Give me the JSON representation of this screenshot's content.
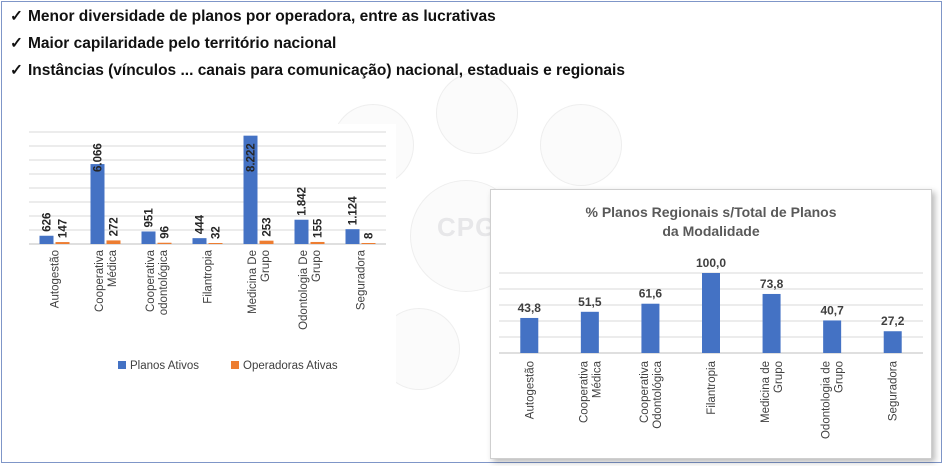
{
  "bullets": [
    {
      "icon": "checkmark-icon",
      "text": "Menor diversidade de planos por operadora, entre as lucrativas"
    },
    {
      "icon": "checkmark-icon",
      "text": "Maior capilaridade pelo território nacional"
    },
    {
      "icon": "checkmark-icon",
      "text": "Instâncias (vínculos ... canais para comunicação) nacional, estaduais e regionais"
    }
  ],
  "watermark": {
    "text": "CPGS"
  },
  "colors": {
    "blue": "#4472c4",
    "orange": "#ed7d31",
    "grid": "#d9d9d9",
    "text": "#404040",
    "title": "#595959"
  },
  "chart_data": [
    {
      "type": "bar",
      "title": "",
      "categories": [
        "Autogestão",
        "Cooperativa Médica",
        "Cooperativa odontológica",
        "Filantropia",
        "Medicina De Grupo",
        "Odontologia De Grupo",
        "Seguradora"
      ],
      "series": [
        {
          "name": "Planos Ativos",
          "values": [
            626,
            6066,
            951,
            444,
            8222,
            1842,
            1124
          ],
          "labels": [
            "626",
            "6.066",
            "951",
            "444",
            "8.222",
            "1.842",
            "1.124"
          ]
        },
        {
          "name": "Operadoras Ativas",
          "values": [
            147,
            272,
            96,
            32,
            253,
            155,
            8
          ],
          "labels": [
            "147",
            "272",
            "96",
            "32",
            "253",
            "155",
            "8"
          ]
        }
      ],
      "ylim": [
        0,
        8500
      ],
      "grid": true,
      "legend": "bottom"
    },
    {
      "type": "bar",
      "title": "% Planos Regionais s/Total de Planos da Modalidade",
      "categories": [
        "Autogestão",
        "Cooperativa Médica",
        "Cooperativa Odontológica",
        "Filantropia",
        "Medicina de Grupo",
        "Odontologia de Grupo",
        "Seguradora"
      ],
      "series": [
        {
          "values": [
            43.8,
            51.5,
            61.6,
            100.0,
            73.8,
            40.7,
            27.2
          ],
          "labels": [
            "43,8",
            "51,5",
            "61,6",
            "100,0",
            "73,8",
            "40,7",
            "27,2"
          ]
        }
      ],
      "ylim": [
        0,
        100
      ],
      "grid": true,
      "legend": "none"
    }
  ]
}
